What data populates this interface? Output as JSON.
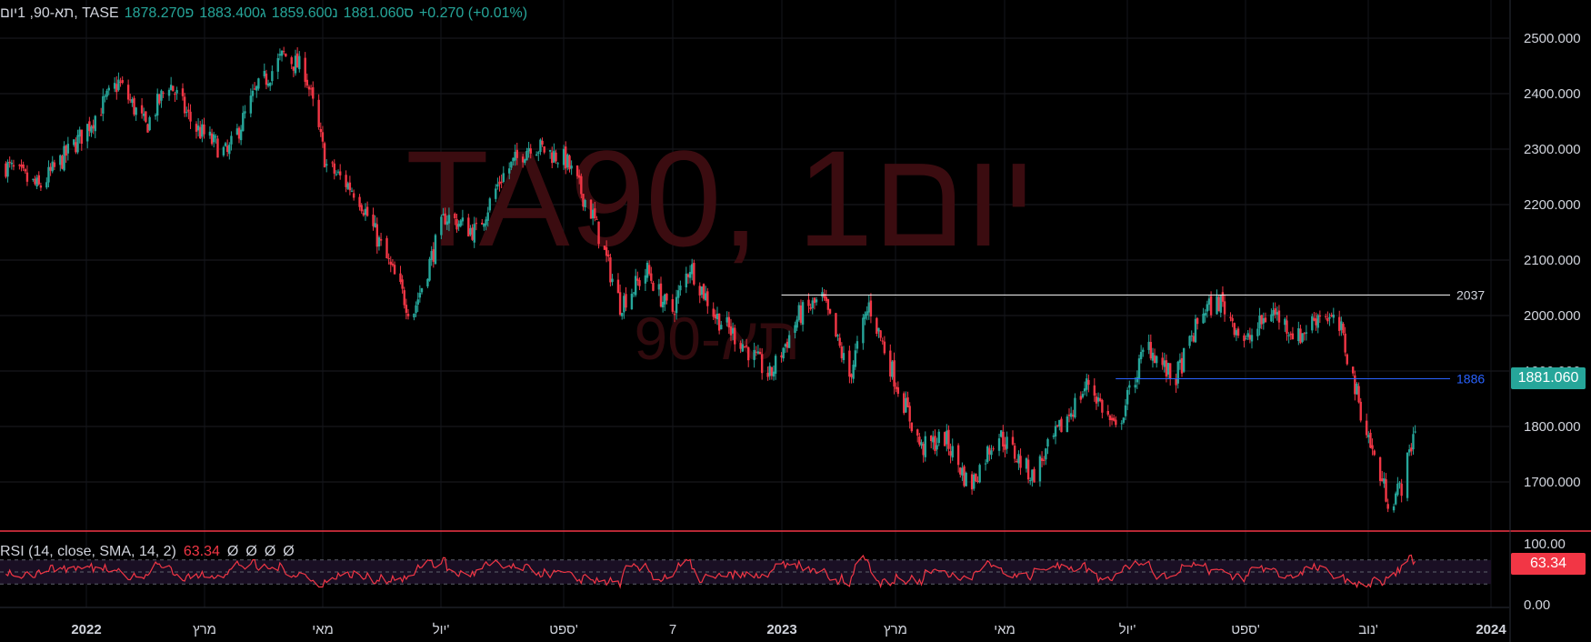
{
  "legend": {
    "title": "תא-90, 1יום, TASE",
    "open": "פ1878.270",
    "high": "ג1883.400",
    "low": "נ1859.600",
    "close": "ס1881.060",
    "change": "+0.270 (+0.01%)"
  },
  "watermark": {
    "main": "TA90, 1יום",
    "sub": "תא-90"
  },
  "rsi": {
    "label": "RSI (14, close, SMA, 14, 2)",
    "value": "63.34",
    "extra": [
      "Ø",
      "Ø",
      "Ø",
      "Ø"
    ]
  },
  "tags": {
    "last": "1881.060",
    "rsi": "63.34"
  },
  "colors": {
    "up": "#26a69a",
    "down": "#f23645",
    "resistance": "#ffffff",
    "support": "#2962ff",
    "rsi": "#f23645"
  },
  "chart_data": {
    "type": "candlestick",
    "y_axis": {
      "ticks": [
        "2500.000",
        "2400.000",
        "2300.000",
        "2200.000",
        "2100.000",
        "2000.000",
        "1900.000",
        "1800.000",
        "1700.000"
      ],
      "range": [
        1610,
        2510
      ]
    },
    "rsi_axis": {
      "ticks": [
        "100.00",
        "0.00"
      ],
      "range": [
        0,
        100
      ],
      "bands": [
        70,
        30
      ]
    },
    "x_axis": {
      "labels": [
        "2022",
        "מרץ",
        "מאי",
        "יול'",
        "ספט'",
        "7",
        "2023",
        "מרץ",
        "מאי",
        "יול'",
        "ספט'",
        "נוב'",
        "2024"
      ]
    },
    "horizontal_lines": [
      {
        "label": "2037",
        "value": 2037,
        "from": "2023-01-01",
        "to": "2023-11-30"
      },
      {
        "label": "1886",
        "value": 1886,
        "from": "2023-07-20",
        "to": "2023-11-30"
      }
    ],
    "anchors": [
      {
        "date": "2021-11-28",
        "close": 2270
      },
      {
        "date": "2021-12-15",
        "close": 2230
      },
      {
        "date": "2022-01-05",
        "close": 2320
      },
      {
        "date": "2022-01-25",
        "close": 2420
      },
      {
        "date": "2022-02-08",
        "close": 2340
      },
      {
        "date": "2022-02-20",
        "close": 2420
      },
      {
        "date": "2022-03-05",
        "close": 2340
      },
      {
        "date": "2022-03-22",
        "close": 2290
      },
      {
        "date": "2022-04-05",
        "close": 2400
      },
      {
        "date": "2022-04-20",
        "close": 2470
      },
      {
        "date": "2022-05-01",
        "close": 2440
      },
      {
        "date": "2022-05-12",
        "close": 2270
      },
      {
        "date": "2022-05-28",
        "close": 2220
      },
      {
        "date": "2022-06-12",
        "close": 2100
      },
      {
        "date": "2022-06-25",
        "close": 2000
      },
      {
        "date": "2022-07-12",
        "close": 2180
      },
      {
        "date": "2022-07-28",
        "close": 2150
      },
      {
        "date": "2022-08-10",
        "close": 2250
      },
      {
        "date": "2022-08-25",
        "close": 2310
      },
      {
        "date": "2022-09-12",
        "close": 2280
      },
      {
        "date": "2022-09-26",
        "close": 2180
      },
      {
        "date": "2022-10-10",
        "close": 2020
      },
      {
        "date": "2022-10-24",
        "close": 2080
      },
      {
        "date": "2022-11-05",
        "close": 2000
      },
      {
        "date": "2022-11-15",
        "close": 2090
      },
      {
        "date": "2022-11-28",
        "close": 2000
      },
      {
        "date": "2022-12-12",
        "close": 1950
      },
      {
        "date": "2022-12-26",
        "close": 1890
      },
      {
        "date": "2023-01-10",
        "close": 2000
      },
      {
        "date": "2023-01-22",
        "close": 2030
      },
      {
        "date": "2023-02-05",
        "close": 1890
      },
      {
        "date": "2023-02-15",
        "close": 2020
      },
      {
        "date": "2023-03-01",
        "close": 1880
      },
      {
        "date": "2023-03-14",
        "close": 1760
      },
      {
        "date": "2023-03-26",
        "close": 1780
      },
      {
        "date": "2023-04-08",
        "close": 1690
      },
      {
        "date": "2023-04-22",
        "close": 1790
      },
      {
        "date": "2023-05-10",
        "close": 1710
      },
      {
        "date": "2023-05-25",
        "close": 1800
      },
      {
        "date": "2023-06-08",
        "close": 1880
      },
      {
        "date": "2023-06-22",
        "close": 1790
      },
      {
        "date": "2023-07-08",
        "close": 1950
      },
      {
        "date": "2023-07-22",
        "close": 1880
      },
      {
        "date": "2023-08-06",
        "close": 2010
      },
      {
        "date": "2023-08-15",
        "close": 2025
      },
      {
        "date": "2023-08-28",
        "close": 1950
      },
      {
        "date": "2023-09-10",
        "close": 2010
      },
      {
        "date": "2023-09-24",
        "close": 1960
      },
      {
        "date": "2023-10-06",
        "close": 2010
      },
      {
        "date": "2023-10-16",
        "close": 1970
      },
      {
        "date": "2023-10-26",
        "close": 1830
      },
      {
        "date": "2023-11-03",
        "close": 1730
      },
      {
        "date": "2023-11-10",
        "close": 1660
      },
      {
        "date": "2023-11-17",
        "close": 1700
      },
      {
        "date": "2023-11-24",
        "close": 1820
      },
      {
        "date": "2023-12-02",
        "close": 1790
      },
      {
        "date": "2023-12-12",
        "close": 1881
      }
    ]
  }
}
